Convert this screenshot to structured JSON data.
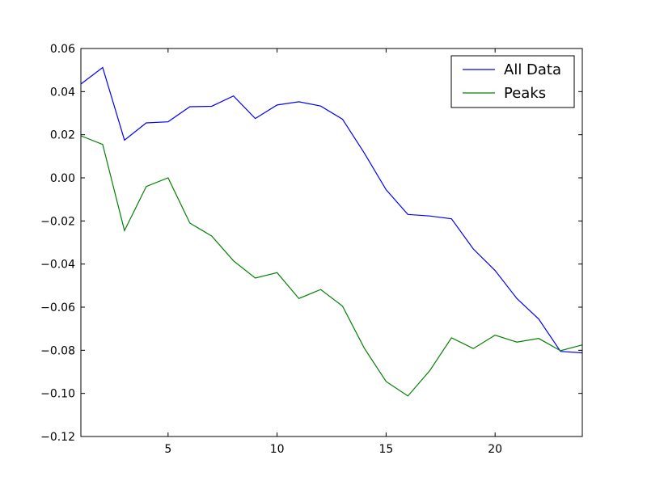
{
  "chart_data": {
    "type": "line",
    "title": "",
    "xlabel": "",
    "ylabel": "",
    "xlim": [
      1,
      24
    ],
    "ylim": [
      -0.12,
      0.06
    ],
    "x_ticks": [
      5,
      10,
      15,
      20
    ],
    "x_tick_labels": [
      "5",
      "10",
      "15",
      "20"
    ],
    "y_ticks": [
      -0.12,
      -0.1,
      -0.08,
      -0.06,
      -0.04,
      -0.02,
      0.0,
      0.02,
      0.04,
      0.06
    ],
    "y_tick_labels": [
      "−0.12",
      "−0.10",
      "−0.08",
      "−0.06",
      "−0.04",
      "−0.02",
      "0.00",
      "0.02",
      "0.04",
      "0.06"
    ],
    "grid": false,
    "legend_position": "top-right",
    "x": [
      1,
      2,
      3,
      4,
      5,
      6,
      7,
      8,
      9,
      10,
      11,
      12,
      13,
      14,
      15,
      16,
      17,
      18,
      19,
      20,
      21,
      22,
      23,
      24
    ],
    "series": [
      {
        "name": "All Data",
        "color": "#0000ff",
        "values": [
          0.0435,
          0.0512,
          0.0175,
          0.0255,
          0.026,
          0.033,
          0.0332,
          0.038,
          0.0275,
          0.0338,
          0.0353,
          0.0333,
          0.0272,
          0.0115,
          -0.0055,
          -0.017,
          -0.0177,
          -0.019,
          -0.033,
          -0.043,
          -0.056,
          -0.0655,
          -0.0805,
          -0.0812
        ]
      },
      {
        "name": "Peaks",
        "color": "#008000",
        "values": [
          0.0195,
          0.0155,
          -0.0245,
          -0.004,
          0.0,
          -0.021,
          -0.027,
          -0.0385,
          -0.0465,
          -0.044,
          -0.056,
          -0.0518,
          -0.0595,
          -0.079,
          -0.0945,
          -0.1012,
          -0.0895,
          -0.0742,
          -0.0792,
          -0.073,
          -0.0762,
          -0.0745,
          -0.0802,
          -0.0775
        ]
      }
    ]
  }
}
